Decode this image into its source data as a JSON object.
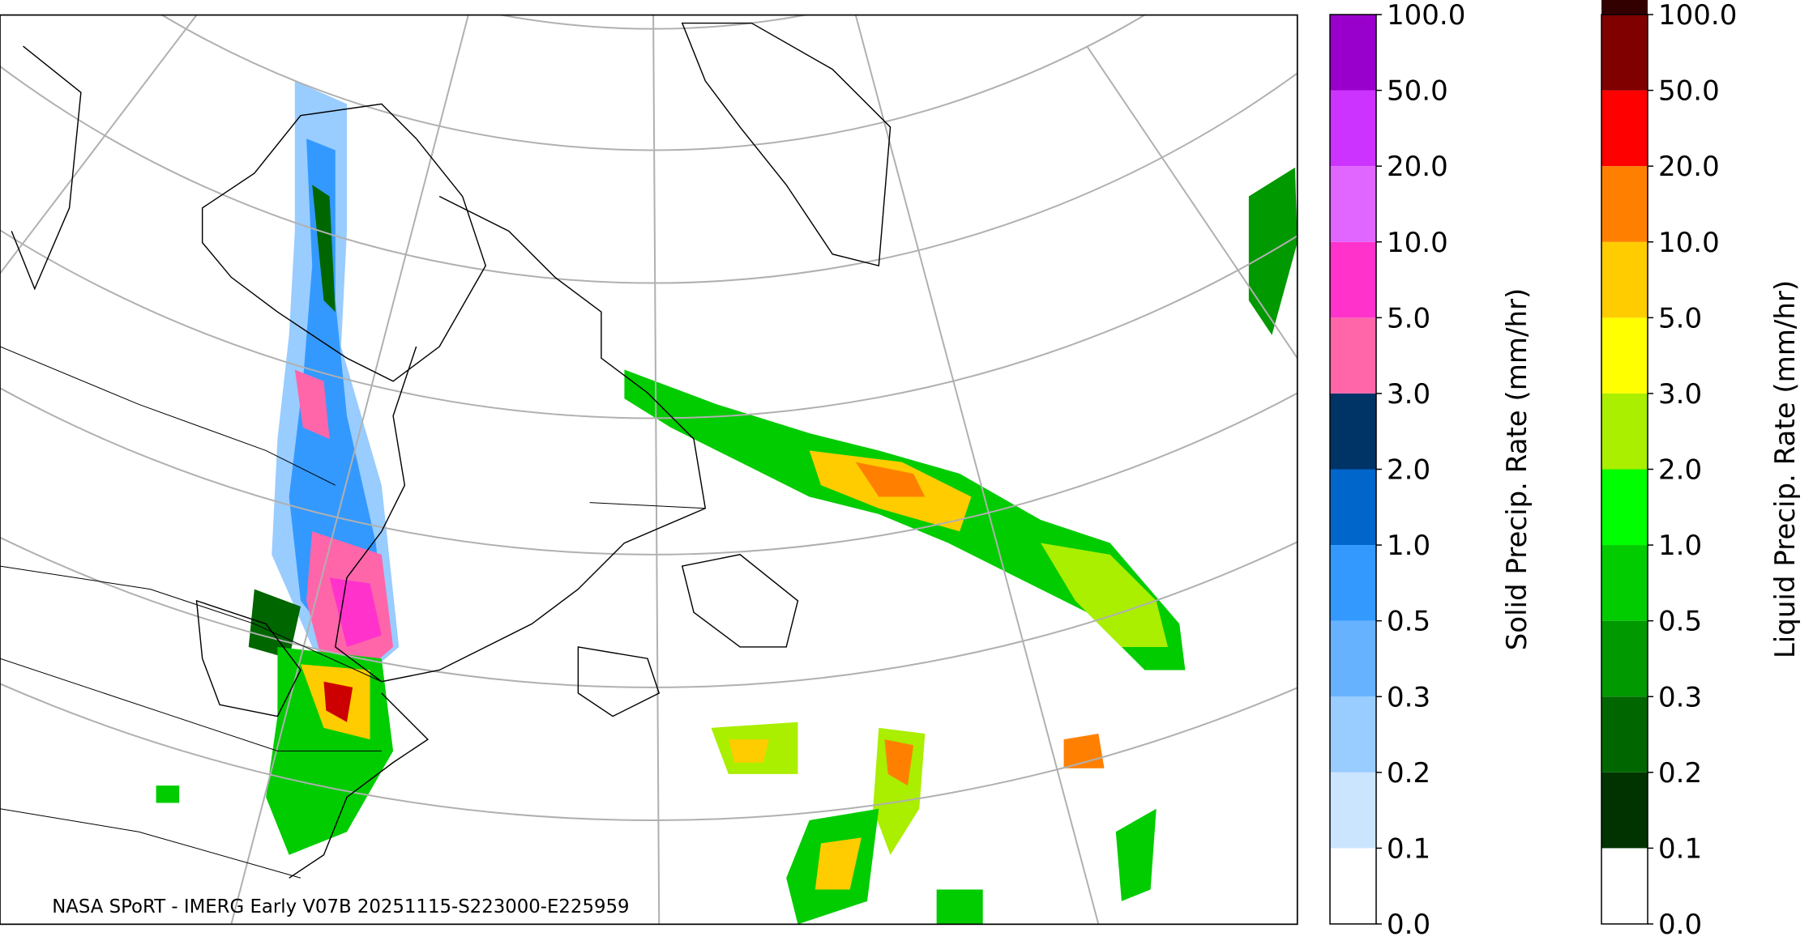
{
  "footer": "NASA SPoRT - IMERG Early V07B 20251115-S223000-E225959",
  "colorbars": [
    {
      "label": "Solid Precip. Rate (mm/hr)",
      "colors": [
        "#ffffff",
        "#cce5ff",
        "#99ccff",
        "#66b2ff",
        "#3399ff",
        "#0066cc",
        "#003366",
        "#ff66aa",
        "#ff33cc",
        "#e066ff",
        "#cc33ff",
        "#9900cc"
      ],
      "ticks": [
        {
          "value": 0,
          "label": "0.0"
        },
        {
          "value": 0.1,
          "label": "0.1"
        },
        {
          "value": 0.2,
          "label": "0.2"
        },
        {
          "value": 0.3,
          "label": "0.3"
        },
        {
          "value": 0.5,
          "label": "0.5"
        },
        {
          "value": 1,
          "label": "1.0"
        },
        {
          "value": 2,
          "label": "2.0"
        },
        {
          "value": 3,
          "label": "3.0"
        },
        {
          "value": 5,
          "label": "5.0"
        },
        {
          "value": 10,
          "label": "10.0"
        },
        {
          "value": 20,
          "label": "20.0"
        },
        {
          "value": 50,
          "label": "50.0"
        },
        {
          "value": 100,
          "label": "100.0"
        }
      ]
    },
    {
      "label": "Liquid Precip. Rate (mm/hr)",
      "colors": [
        "#ffffff",
        "#003300",
        "#006600",
        "#009900",
        "#00cc00",
        "#00ff00",
        "#aaee00",
        "#ffff00",
        "#ffcc00",
        "#ff8000",
        "#ff0000",
        "#800000",
        "#330000"
      ],
      "ticks": [
        {
          "value": 0,
          "label": "0.0"
        },
        {
          "value": 0.1,
          "label": "0.1"
        },
        {
          "value": 0.2,
          "label": "0.2"
        },
        {
          "value": 0.3,
          "label": "0.3"
        },
        {
          "value": 0.5,
          "label": "0.5"
        },
        {
          "value": 1,
          "label": "1.0"
        },
        {
          "value": 2,
          "label": "2.0"
        },
        {
          "value": 3,
          "label": "3.0"
        },
        {
          "value": 5,
          "label": "5.0"
        },
        {
          "value": 10,
          "label": "10.0"
        },
        {
          "value": 20,
          "label": "20.0"
        },
        {
          "value": 50,
          "label": "50.0"
        },
        {
          "value": 100,
          "label": "100.0"
        }
      ]
    }
  ]
}
